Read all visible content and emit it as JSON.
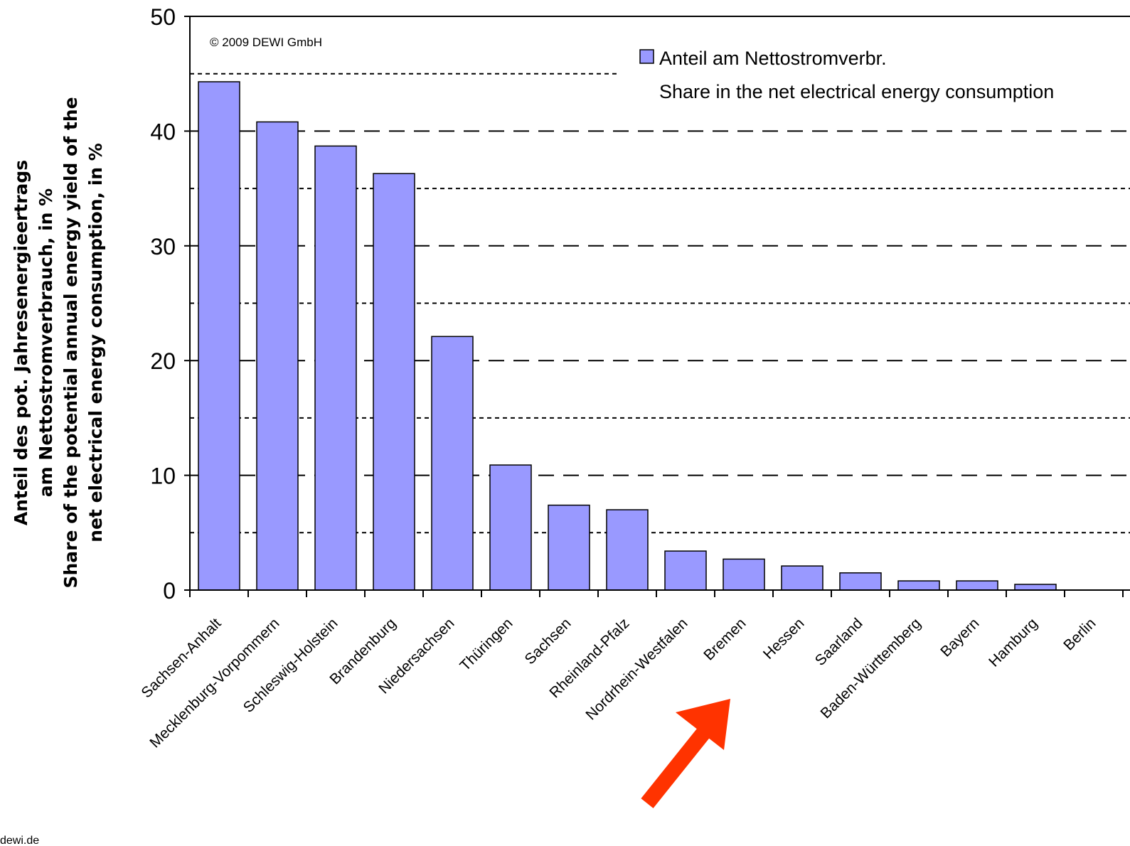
{
  "chart_data": {
    "type": "bar",
    "categories": [
      "Sachsen-Anhalt",
      "Mecklenburg-Vorpommern",
      "Schleswig-Holstein",
      "Brandenburg",
      "Niedersachsen",
      "Thüringen",
      "Sachsen",
      "Rheinland-Pfalz",
      "Nordrhein-Westfalen",
      "Bremen",
      "Hessen",
      "Saarland",
      "Baden-Württemberg",
      "Bayern",
      "Hamburg",
      "Berlin"
    ],
    "series": [
      {
        "name": "Anteil am Nettostromverbr. / Share in the net electrical energy consumption",
        "values": [
          44.3,
          40.8,
          38.7,
          36.3,
          22.1,
          10.9,
          7.4,
          7.0,
          3.4,
          2.7,
          2.1,
          1.5,
          0.8,
          0.8,
          0.5,
          0.0
        ],
        "color": "#9999ff"
      }
    ],
    "ylim": [
      0,
      50
    ],
    "yticks": [
      0,
      10,
      20,
      30,
      40,
      50
    ],
    "ylabel_lines": [
      "Anteil des pot. Jahresenergieertrags",
      "am Nettostromverbrauch, in %",
      "Share of the potential annual energy yield of the",
      "net electrical energy consumption, in %"
    ],
    "legend": {
      "line1": "Anteil am Nettostromverbr.",
      "line2": "Share in the net electrical energy consumption",
      "position": "top-right"
    },
    "copyright": "© 2009 DEWI GmbH",
    "grid": {
      "major_dashed": [
        10,
        20,
        30,
        40
      ],
      "minor_dotted": [
        5,
        15,
        25,
        35,
        45
      ]
    },
    "annotation": {
      "type": "arrow",
      "color": "#ff3300",
      "points_to": "Bremen"
    }
  },
  "footer": {
    "text": "dewi.de"
  }
}
